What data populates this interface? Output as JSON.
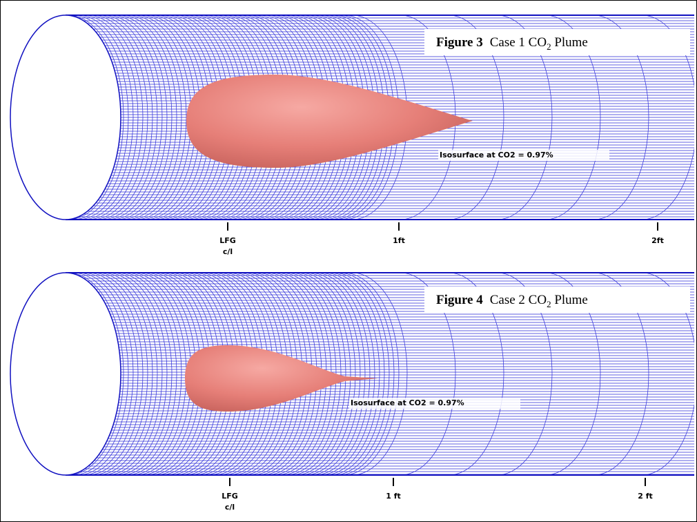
{
  "figures": [
    {
      "label": "Figure 3",
      "caption": "Case 1 CO",
      "caption_sub": "2",
      "caption_end": " Plume",
      "annotation": "Isosurface at CO2 = 0.97%",
      "ticks": [
        {
          "line1": "LFG",
          "line2": "c/l"
        },
        {
          "line1": "1ft"
        },
        {
          "line1": "2ft"
        }
      ]
    },
    {
      "label": "Figure 4",
      "caption": "Case 2 CO",
      "caption_sub": "2",
      "caption_end": " Plume",
      "annotation": "Isosurface at CO2 = 0.97%",
      "ticks": [
        {
          "line1": "LFG",
          "line2": "c/l"
        },
        {
          "line1": "1 ft"
        },
        {
          "line1": "2 ft"
        }
      ]
    }
  ]
}
